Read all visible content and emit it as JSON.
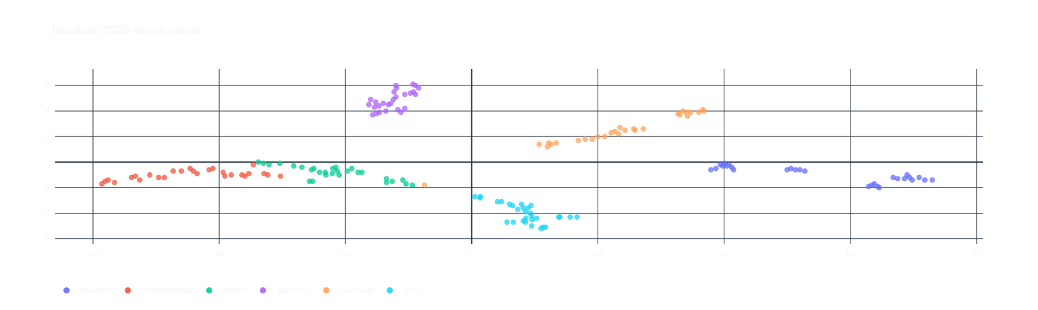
{
  "title": "handicap 2020 similar words",
  "colors": {
    "disability": "#636efa",
    "neurodiversity": "#EF553B",
    "autism": "#00cc96",
    "spectrum": "#ab63fa",
    "handicap": "#FFA15A",
    "golf": "#19d3f3",
    "grid": "#283442",
    "text": "#f2f5fa"
  },
  "legend": [
    {
      "label": "disability",
      "color": "#636efa"
    },
    {
      "label": "neurodiversity",
      "color": "#EF553B"
    },
    {
      "label": "autism",
      "color": "#00cc96"
    },
    {
      "label": "spectrum",
      "color": "#ab63fa"
    },
    {
      "label": "handicap",
      "color": "#FFA15A"
    },
    {
      "label": "golf",
      "color": "#19d3f3"
    }
  ],
  "chart_data": {
    "type": "scatter",
    "title": "handicap 2020 similar words",
    "xlabel": "",
    "ylabel": "",
    "xlim": [
      -66,
      81
    ],
    "ylim": [
      -6.4,
      7.3
    ],
    "xticks": [
      -60,
      -40,
      -20,
      0,
      20,
      40,
      60,
      80
    ],
    "yticks": [
      -6,
      -4,
      -2,
      2,
      4,
      6
    ],
    "grid": true,
    "legend_position": "bottom-left",
    "series": [
      {
        "name": "disability",
        "color": "#636efa",
        "points": [
          [
            37.9,
            -0.6
          ],
          [
            38.7,
            -0.5
          ],
          [
            39.4,
            -0.2
          ],
          [
            40.0,
            -0.1
          ],
          [
            40.4,
            -0.3
          ],
          [
            40.8,
            -0.2
          ],
          [
            41.2,
            -0.4
          ],
          [
            41.5,
            -0.6
          ],
          [
            39.8,
            -0.3
          ],
          [
            50.0,
            -0.6
          ],
          [
            50.6,
            -0.5
          ],
          [
            51.3,
            -0.6
          ],
          [
            52.0,
            -0.6
          ],
          [
            52.8,
            -0.7
          ],
          [
            62.9,
            -1.9
          ],
          [
            63.4,
            -1.8
          ],
          [
            63.8,
            -1.7
          ],
          [
            64.3,
            -1.9
          ],
          [
            64.6,
            -2.0
          ],
          [
            66.8,
            -1.2
          ],
          [
            67.5,
            -1.3
          ],
          [
            68.6,
            -1.3
          ],
          [
            69.0,
            -1.0
          ],
          [
            69.4,
            -1.2
          ],
          [
            69.8,
            -1.4
          ],
          [
            70.9,
            -1.2
          ],
          [
            71.8,
            -1.4
          ],
          [
            73.0,
            -1.4
          ]
        ]
      },
      {
        "name": "neurodiversity",
        "color": "#EF553B",
        "points": [
          [
            -58.6,
            -1.7
          ],
          [
            -58.1,
            -1.5
          ],
          [
            -57.6,
            -1.4
          ],
          [
            -56.6,
            -1.6
          ],
          [
            -53.9,
            -1.2
          ],
          [
            -53.3,
            -1.1
          ],
          [
            -52.6,
            -1.4
          ],
          [
            -51.0,
            -1.0
          ],
          [
            -49.6,
            -1.2
          ],
          [
            -48.7,
            -1.2
          ],
          [
            -47.3,
            -0.7
          ],
          [
            -46.0,
            -0.7
          ],
          [
            -44.6,
            -0.5
          ],
          [
            -44.1,
            -0.7
          ],
          [
            -43.5,
            -0.9
          ],
          [
            -41.6,
            -0.6
          ],
          [
            -41.0,
            -0.5
          ],
          [
            -39.4,
            -0.8
          ],
          [
            -39.1,
            -1.1
          ],
          [
            -38.1,
            -1.0
          ],
          [
            -36.4,
            -1.0
          ],
          [
            -35.9,
            -1.1
          ],
          [
            -35.3,
            -0.9
          ],
          [
            -32.9,
            -0.9
          ],
          [
            -32.3,
            -1.0
          ],
          [
            -30.3,
            -1.1
          ],
          [
            -34.6,
            -0.2
          ]
        ]
      },
      {
        "name": "autism",
        "color": "#00cc96",
        "points": [
          [
            -33.8,
            0.0
          ],
          [
            -33.0,
            -0.1
          ],
          [
            -32.1,
            -0.2
          ],
          [
            -30.4,
            -0.1
          ],
          [
            -28.2,
            -0.3
          ],
          [
            -26.9,
            -0.4
          ],
          [
            -25.4,
            -0.6
          ],
          [
            -25.0,
            -0.5
          ],
          [
            -24.1,
            -0.8
          ],
          [
            -23.2,
            -0.8
          ],
          [
            -23.1,
            -1.0
          ],
          [
            -22.0,
            -0.5
          ],
          [
            -21.5,
            -0.4
          ],
          [
            -22.1,
            -0.9
          ],
          [
            -21.3,
            -0.7
          ],
          [
            -21.0,
            -1.0
          ],
          [
            -19.7,
            -0.7
          ],
          [
            -19.0,
            -0.5
          ],
          [
            -18.0,
            -0.8
          ],
          [
            -17.4,
            -0.8
          ],
          [
            -25.7,
            -1.5
          ],
          [
            -25.2,
            -1.5
          ],
          [
            -13.5,
            -1.3
          ],
          [
            -13.5,
            -1.6
          ],
          [
            -12.6,
            -1.5
          ],
          [
            -10.9,
            -1.4
          ],
          [
            -10.4,
            -1.7
          ],
          [
            -9.4,
            -1.8
          ]
        ]
      },
      {
        "name": "spectrum",
        "color": "#ab63fa",
        "points": [
          [
            -16.3,
            4.5
          ],
          [
            -16.0,
            4.9
          ],
          [
            -15.4,
            4.3
          ],
          [
            -15.2,
            4.7
          ],
          [
            -14.7,
            4.4
          ],
          [
            -15.7,
            3.7
          ],
          [
            -15.1,
            3.8
          ],
          [
            -14.6,
            3.9
          ],
          [
            -14.0,
            4.6
          ],
          [
            -13.6,
            4.0
          ],
          [
            -13.2,
            4.5
          ],
          [
            -12.8,
            4.6
          ],
          [
            -12.4,
            4.9
          ],
          [
            -12.0,
            5.1
          ],
          [
            -11.7,
            4.1
          ],
          [
            -11.2,
            3.9
          ],
          [
            -10.6,
            4.2
          ],
          [
            -10.6,
            5.3
          ],
          [
            -9.7,
            5.4
          ],
          [
            -9.2,
            5.5
          ],
          [
            -8.9,
            5.3
          ],
          [
            -8.4,
            5.8
          ],
          [
            -9.3,
            6.1
          ],
          [
            -8.9,
            6.0
          ],
          [
            -11.9,
            5.8
          ],
          [
            -12.3,
            5.5
          ],
          [
            -12.0,
            6.0
          ]
        ]
      },
      {
        "name": "handicap",
        "color": "#FFA15A",
        "points": [
          [
            10.7,
            1.4
          ],
          [
            12.0,
            1.2
          ],
          [
            12.2,
            1.5
          ],
          [
            12.6,
            1.4
          ],
          [
            13.4,
            1.5
          ],
          [
            16.9,
            1.7
          ],
          [
            18.0,
            1.8
          ],
          [
            19.1,
            1.8
          ],
          [
            20.0,
            2.0
          ],
          [
            21.1,
            2.0
          ],
          [
            22.1,
            2.3
          ],
          [
            22.7,
            2.4
          ],
          [
            23.3,
            2.2
          ],
          [
            23.5,
            2.7
          ],
          [
            24.3,
            2.5
          ],
          [
            25.7,
            2.6
          ],
          [
            25.9,
            2.5
          ],
          [
            27.2,
            2.6
          ],
          [
            32.7,
            3.8
          ],
          [
            33.0,
            3.7
          ],
          [
            33.5,
            4.0
          ],
          [
            34.0,
            3.9
          ],
          [
            34.2,
            3.6
          ],
          [
            34.7,
            3.9
          ],
          [
            36.0,
            3.9
          ],
          [
            36.6,
            4.1
          ],
          [
            36.8,
            4.0
          ],
          [
            -7.5,
            -1.8
          ]
        ]
      },
      {
        "name": "golf",
        "color": "#19d3f3",
        "points": [
          [
            0.5,
            -2.7
          ],
          [
            1.3,
            -2.8
          ],
          [
            1.4,
            -2.7
          ],
          [
            4.1,
            -3.1
          ],
          [
            4.7,
            -3.1
          ],
          [
            6.0,
            -3.3
          ],
          [
            6.5,
            -3.4
          ],
          [
            7.3,
            -3.7
          ],
          [
            7.9,
            -3.3
          ],
          [
            8.2,
            -3.6
          ],
          [
            8.5,
            -3.9
          ],
          [
            8.9,
            -3.6
          ],
          [
            9.3,
            -4.0
          ],
          [
            9.4,
            -3.4
          ],
          [
            9.5,
            -4.2
          ],
          [
            9.6,
            -4.5
          ],
          [
            8.2,
            -4.6
          ],
          [
            8.6,
            -4.4
          ],
          [
            5.6,
            -4.7
          ],
          [
            6.6,
            -4.7
          ],
          [
            9.5,
            -5.0
          ],
          [
            11.3,
            -5.1
          ],
          [
            11.0,
            -5.2
          ],
          [
            11.7,
            -5.1
          ],
          [
            10.3,
            -4.4
          ],
          [
            14.0,
            -4.3
          ],
          [
            13.8,
            -4.3
          ],
          [
            15.6,
            -4.3
          ],
          [
            16.7,
            -4.3
          ],
          [
            8.5,
            -4.7
          ]
        ]
      }
    ]
  }
}
